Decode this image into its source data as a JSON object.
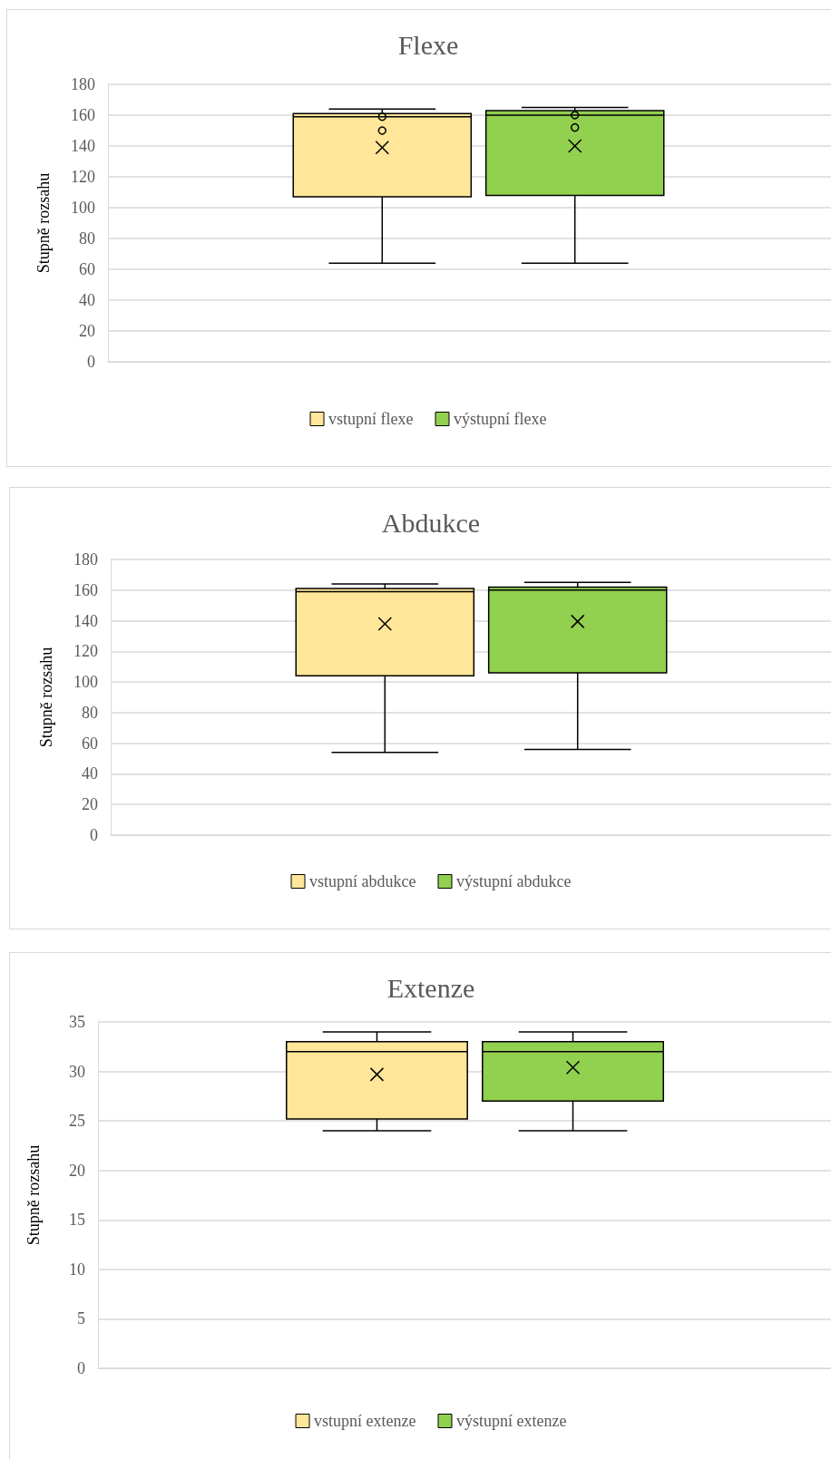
{
  "chart_data": [
    {
      "type": "box",
      "title": "Flexe",
      "ylabel": "Stupně rozsahu",
      "categories": [
        null
      ],
      "ylim": [
        0,
        180
      ],
      "yticks": [
        0,
        20,
        40,
        60,
        80,
        100,
        120,
        140,
        160,
        180
      ],
      "grid": "y",
      "legend": "bottom",
      "series": [
        {
          "name": "vstupní flexe",
          "color": "#ffe699",
          "boxes": [
            {
              "low": 64,
              "q1": 107,
              "median": 159,
              "q3": 161,
              "high": 164,
              "mean": 139,
              "outliers": [
                159,
                150
              ]
            }
          ]
        },
        {
          "name": "výstupní flexe",
          "color": "#92d050",
          "boxes": [
            {
              "low": 64,
              "q1": 108,
              "median": 160,
              "q3": 163,
              "high": 165,
              "mean": 140,
              "outliers": [
                160,
                152
              ]
            }
          ]
        }
      ]
    },
    {
      "type": "box",
      "title": "Abdukce",
      "ylabel": "Stupně rozsahu",
      "categories": [
        null
      ],
      "ylim": [
        0,
        180
      ],
      "yticks": [
        0,
        20,
        40,
        60,
        80,
        100,
        120,
        140,
        160,
        180
      ],
      "grid": "y",
      "legend": "bottom",
      "series": [
        {
          "name": "vstupní abdukce",
          "color": "#ffe699",
          "boxes": [
            {
              "low": 54,
              "q1": 104,
              "median": 159,
              "q3": 161,
              "high": 164,
              "mean": 138
            }
          ]
        },
        {
          "name": "výstupní abdukce",
          "color": "#92d050",
          "boxes": [
            {
              "low": 56,
              "q1": 106,
              "median": 160,
              "q3": 162,
              "high": 165,
              "mean": 139.5
            }
          ]
        }
      ]
    },
    {
      "type": "box",
      "title": "Extenze",
      "ylabel": "Stupně rozsahu",
      "categories": [
        null
      ],
      "ylim": [
        0,
        35
      ],
      "yticks": [
        0,
        5,
        10,
        15,
        20,
        25,
        30,
        35
      ],
      "grid": "y",
      "legend": "bottom",
      "series": [
        {
          "name": "vstupní extenze",
          "color": "#ffe699",
          "boxes": [
            {
              "low": 24,
              "q1": 25.2,
              "median": 32,
              "q3": 33,
              "high": 34,
              "mean": 29.7
            }
          ]
        },
        {
          "name": "výstupní extenze",
          "color": "#92d050",
          "boxes": [
            {
              "low": 24,
              "q1": 27,
              "median": 32,
              "q3": 33,
              "high": 34,
              "mean": 30.4
            }
          ]
        }
      ]
    }
  ]
}
